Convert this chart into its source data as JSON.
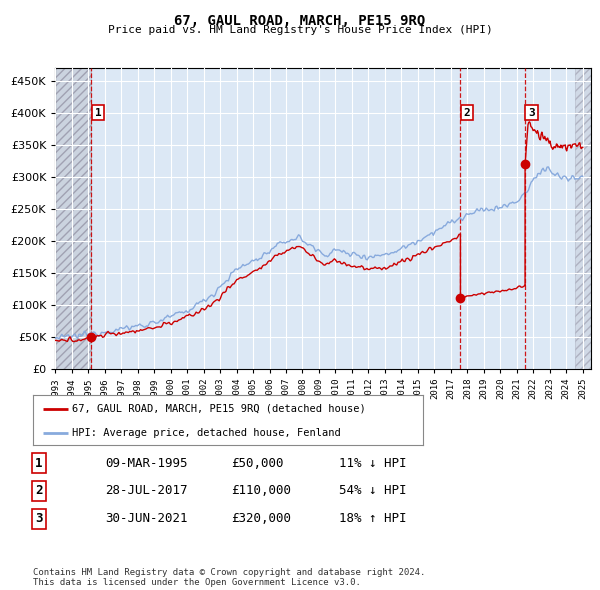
{
  "title": "67, GAUL ROAD, MARCH, PE15 9RQ",
  "subtitle": "Price paid vs. HM Land Registry's House Price Index (HPI)",
  "ytick_values": [
    0,
    50000,
    100000,
    150000,
    200000,
    250000,
    300000,
    350000,
    400000,
    450000
  ],
  "ylim": [
    0,
    470000
  ],
  "xlim_start": 1993.0,
  "xlim_end": 2025.5,
  "hatch_region_end": 1995.19,
  "transaction_dates": [
    1995.19,
    2017.58,
    2021.5
  ],
  "transaction_prices": [
    50000,
    110000,
    320000
  ],
  "transaction_labels": [
    "1",
    "2",
    "3"
  ],
  "vline_color": "#cc0000",
  "sale_dot_color": "#cc0000",
  "legend_label_red": "67, GAUL ROAD, MARCH, PE15 9RQ (detached house)",
  "legend_label_blue": "HPI: Average price, detached house, Fenland",
  "table_rows": [
    [
      "1",
      "09-MAR-1995",
      "£50,000",
      "11% ↓ HPI"
    ],
    [
      "2",
      "28-JUL-2017",
      "£110,000",
      "54% ↓ HPI"
    ],
    [
      "3",
      "30-JUN-2021",
      "£320,000",
      "18% ↑ HPI"
    ]
  ],
  "footer": "Contains HM Land Registry data © Crown copyright and database right 2024.\nThis data is licensed under the Open Government Licence v3.0.",
  "red_line_color": "#cc0000",
  "blue_line_color": "#88aadd",
  "background_color": "#ffffff",
  "plot_bg_color": "#dce8f5",
  "grid_color": "#ffffff"
}
